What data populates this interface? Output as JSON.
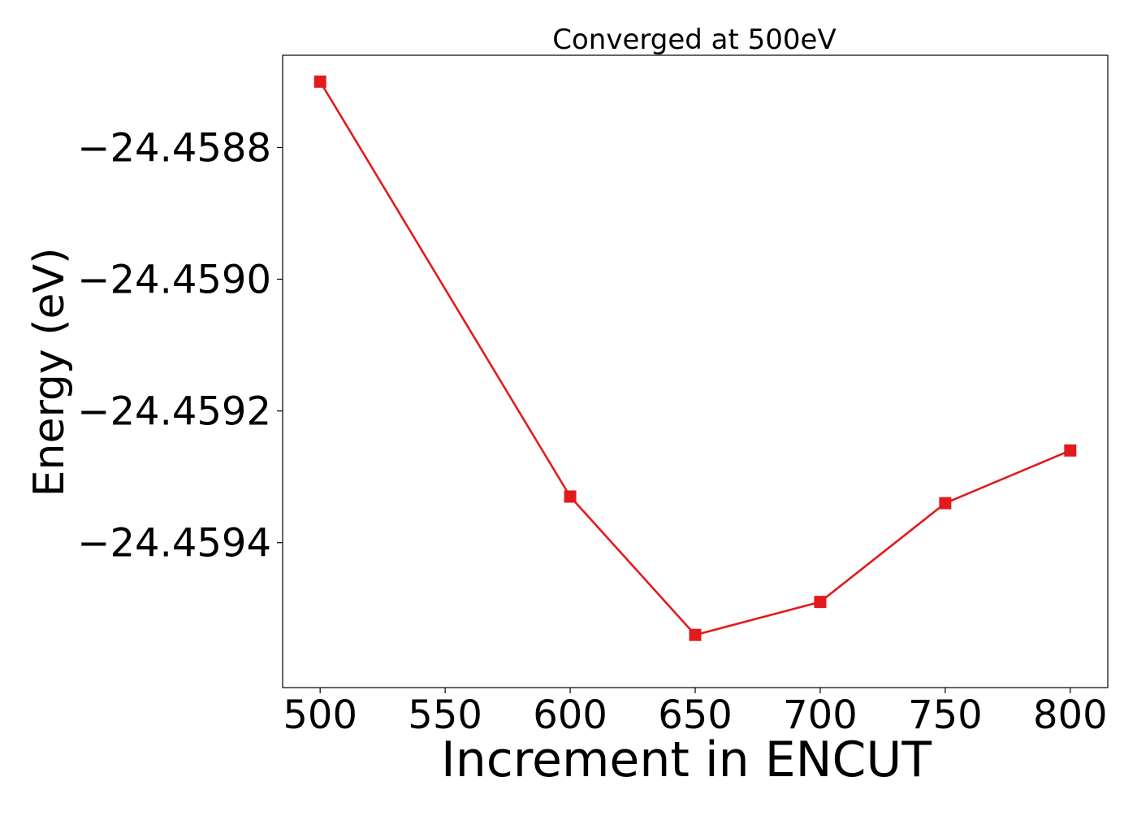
{
  "chart_data": {
    "type": "line",
    "title": "Converged at 500eV",
    "xlabel": "Increment in ENCUT",
    "ylabel": "Energy (eV)",
    "x": [
      500,
      600,
      650,
      700,
      750,
      800
    ],
    "series": [
      {
        "values": [
          -24.4587,
          -24.45933,
          -24.45954,
          -24.45949,
          -24.45934,
          -24.45926
        ],
        "color": "#e31a1c",
        "marker": "square"
      }
    ],
    "xlim": [
      485,
      815
    ],
    "ylim": [
      -24.45962,
      -24.45866
    ],
    "xticks": [
      500,
      550,
      600,
      650,
      700,
      750,
      800
    ],
    "xtick_labels": [
      "500",
      "550",
      "600",
      "650",
      "700",
      "750",
      "800"
    ],
    "yticks": [
      -24.4588,
      -24.459,
      -24.4592,
      -24.4594
    ],
    "ytick_labels": [
      "−24.4588",
      "−24.4590",
      "−24.4592",
      "−24.4594"
    ],
    "grid": false,
    "legend": "none"
  }
}
